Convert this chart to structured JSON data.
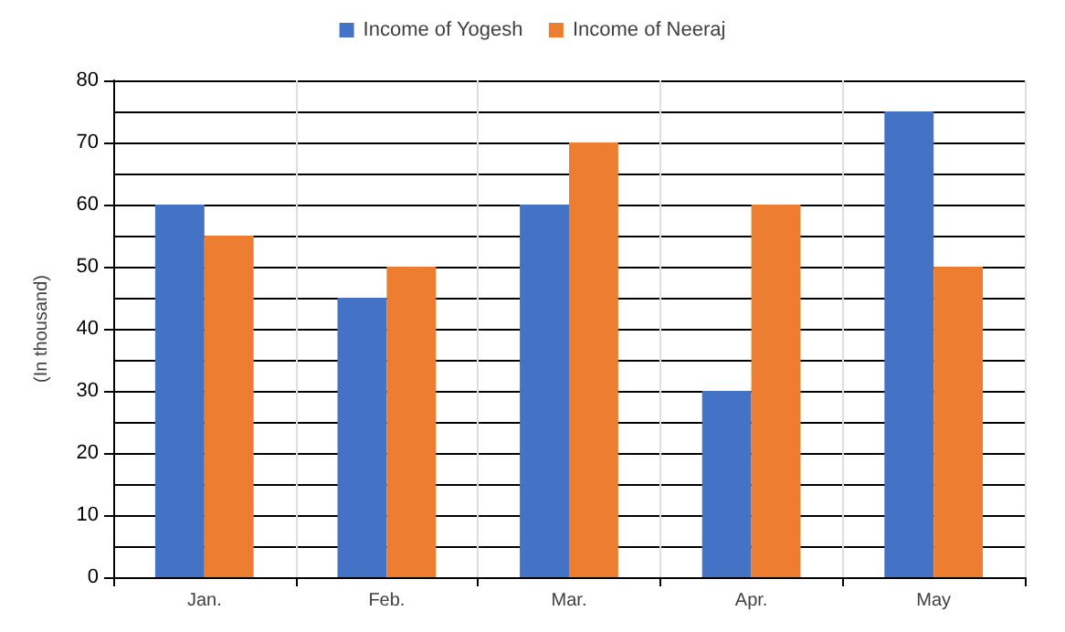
{
  "chart_data": {
    "type": "bar",
    "ylabel": "(In thousand)",
    "categories": [
      "Jan.",
      "Feb.",
      "Mar.",
      "Apr.",
      "May"
    ],
    "series": [
      {
        "name": "Income of Yogesh",
        "color": "#4472c4",
        "values": [
          60,
          45,
          60,
          30,
          75
        ]
      },
      {
        "name": "Income of Neeraj",
        "color": "#ed7d31",
        "values": [
          55,
          50,
          70,
          60,
          50
        ]
      }
    ],
    "ylim": [
      0,
      80
    ],
    "yticks": [
      0,
      10,
      20,
      30,
      40,
      50,
      60,
      70,
      80
    ],
    "grid": true,
    "legend": "top"
  }
}
